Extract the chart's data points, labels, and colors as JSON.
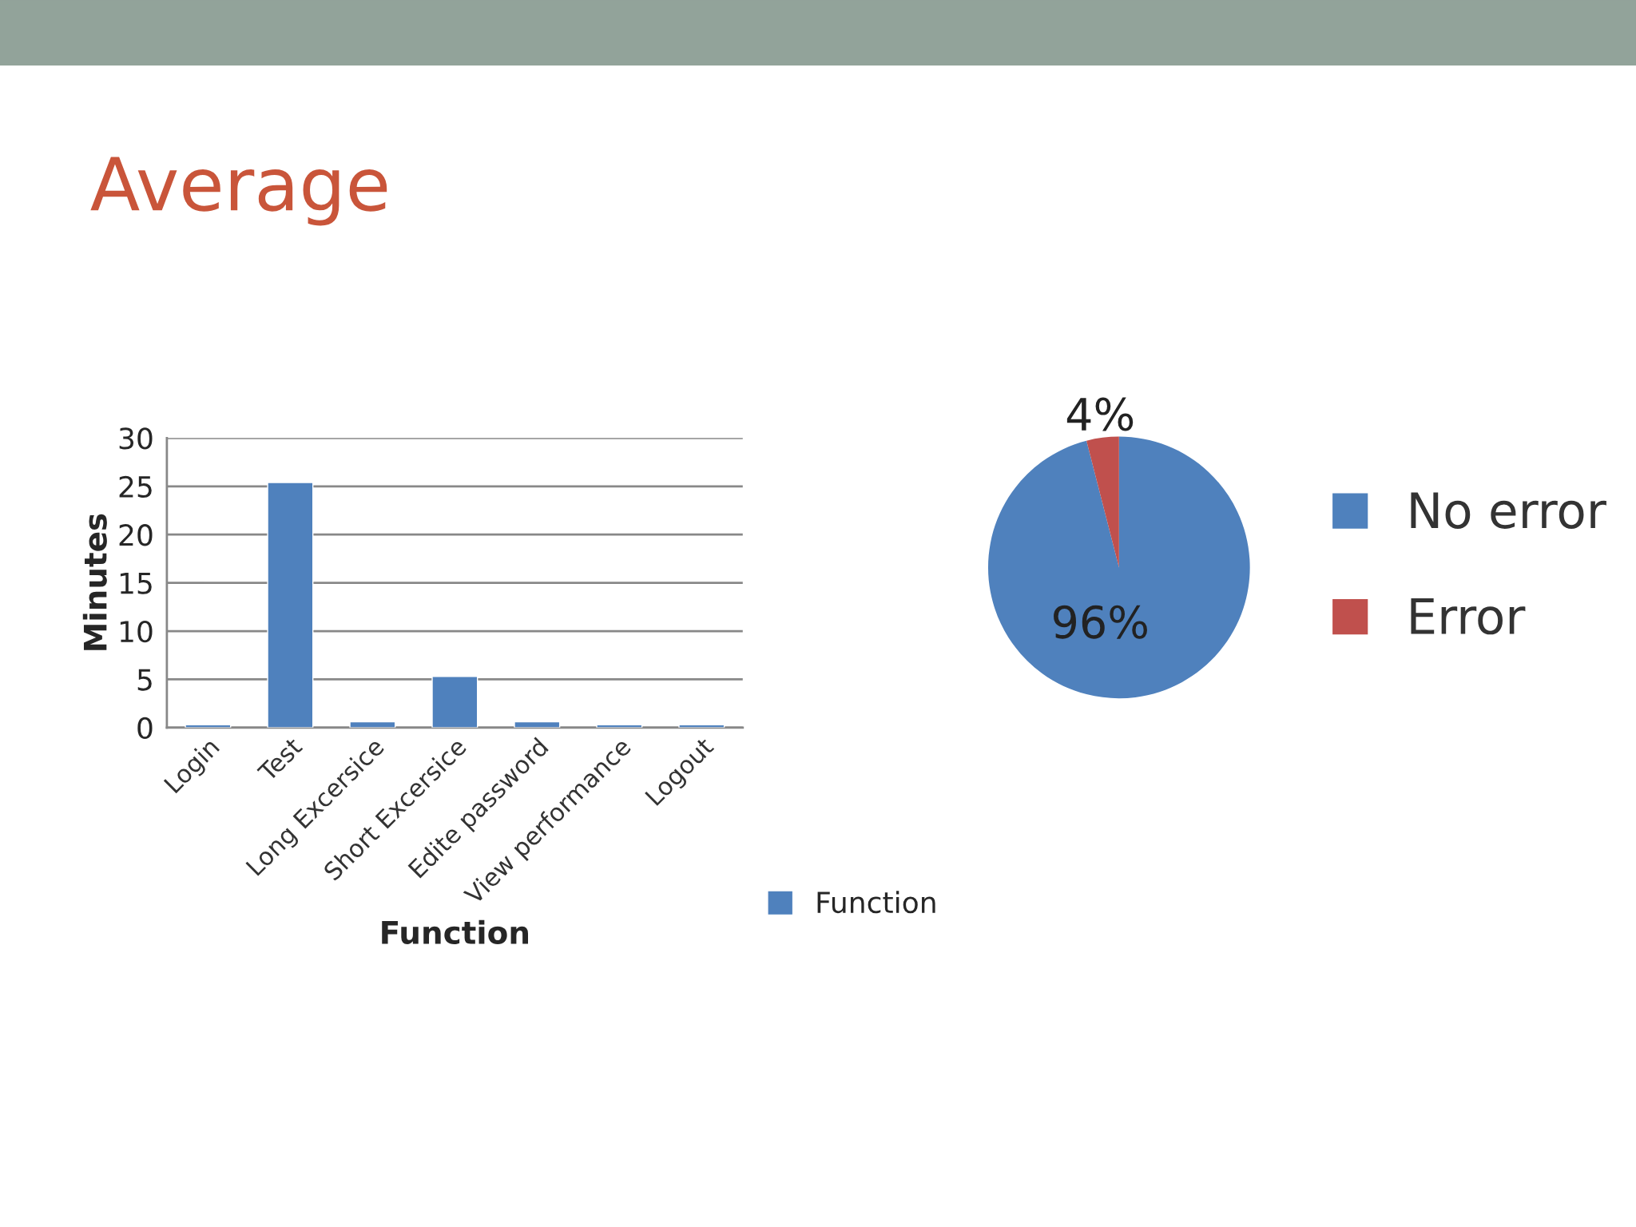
{
  "chart_data": [
    {
      "type": "bar",
      "title": "Average",
      "xlabel": "Function",
      "ylabel": "Minutes",
      "categories": [
        "Login",
        "Test",
        "Long Excersice",
        "Short Excersice",
        "Edite password",
        "View performance",
        "Logout"
      ],
      "series": [
        {
          "name": "Function",
          "color": "#4f81bd",
          "values": [
            0.3,
            25.4,
            0.6,
            5.3,
            0.6,
            0.3,
            0.3
          ]
        }
      ],
      "ylim": [
        0,
        30
      ],
      "yticks": [
        0,
        5,
        10,
        15,
        20,
        25,
        30
      ],
      "grid": "y",
      "legend": "bottom right"
    },
    {
      "type": "pie",
      "categories": [
        "No error",
        "Error"
      ],
      "values": [
        96,
        4
      ],
      "colors": [
        "#4f81bd",
        "#c0504d"
      ],
      "value_labels": [
        "96%",
        "4%"
      ],
      "legend": "right"
    }
  ]
}
